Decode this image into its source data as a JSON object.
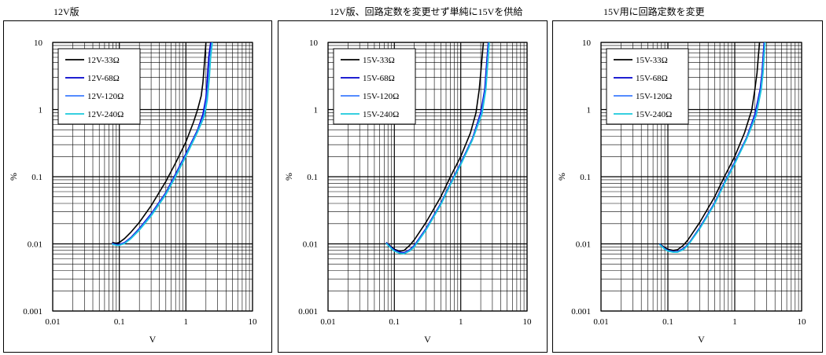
{
  "chart_data": [
    {
      "type": "line",
      "title": "12V版",
      "xlabel": "V",
      "ylabel": "%",
      "xscale": "log",
      "yscale": "log",
      "xlim": [
        0.01,
        10
      ],
      "ylim": [
        0.001,
        10
      ],
      "xticks": [
        "0.01",
        "0.1",
        "1",
        "10"
      ],
      "yticks": [
        "0.001",
        "0.01",
        "0.1",
        "1",
        "10"
      ],
      "grid": true,
      "legend": "top-left",
      "series": [
        {
          "name": "12V-33Ω",
          "color": "#000000",
          "x": [
            0.078,
            0.09,
            0.1,
            0.12,
            0.15,
            0.2,
            0.3,
            0.5,
            0.7,
            1.0,
            1.3,
            1.5,
            1.7,
            1.8,
            1.9,
            2.0
          ],
          "y": [
            0.0105,
            0.0102,
            0.0105,
            0.012,
            0.015,
            0.021,
            0.037,
            0.085,
            0.16,
            0.33,
            0.65,
            1.0,
            1.6,
            2.5,
            5.0,
            10.0
          ]
        },
        {
          "name": "12V-68Ω",
          "color": "#0000cc",
          "x": [
            0.078,
            0.09,
            0.1,
            0.12,
            0.15,
            0.2,
            0.3,
            0.5,
            0.7,
            1.0,
            1.5,
            1.8,
            2.0,
            2.1,
            2.2,
            2.35
          ],
          "y": [
            0.0102,
            0.0098,
            0.0098,
            0.0105,
            0.0125,
            0.017,
            0.028,
            0.058,
            0.11,
            0.22,
            0.5,
            0.85,
            1.5,
            3.0,
            6.0,
            10.0
          ]
        },
        {
          "name": "12V-120Ω",
          "color": "#3d7bff",
          "x": [
            0.078,
            0.09,
            0.1,
            0.12,
            0.15,
            0.2,
            0.3,
            0.5,
            0.7,
            1.0,
            1.5,
            1.85,
            2.05,
            2.2,
            2.3,
            2.45
          ],
          "y": [
            0.01,
            0.0096,
            0.0096,
            0.0103,
            0.0122,
            0.0165,
            0.027,
            0.056,
            0.105,
            0.21,
            0.48,
            0.82,
            1.45,
            3.0,
            6.0,
            10.0
          ]
        },
        {
          "name": "12V-240Ω",
          "color": "#19c8dc",
          "x": [
            0.078,
            0.09,
            0.1,
            0.12,
            0.15,
            0.2,
            0.3,
            0.5,
            0.7,
            1.0,
            1.5,
            1.9,
            2.1,
            2.25,
            2.35,
            2.5
          ],
          "y": [
            0.0099,
            0.0095,
            0.0095,
            0.0101,
            0.012,
            0.016,
            0.026,
            0.054,
            0.1,
            0.2,
            0.46,
            0.8,
            1.4,
            3.0,
            6.0,
            10.0
          ]
        }
      ]
    },
    {
      "type": "line",
      "title": "12V版、回路定数を変更せず単純に15Vを供給",
      "xlabel": "V",
      "ylabel": "%",
      "xscale": "log",
      "yscale": "log",
      "xlim": [
        0.01,
        10
      ],
      "ylim": [
        0.001,
        10
      ],
      "xticks": [
        "0.01",
        "0.1",
        "1",
        "10"
      ],
      "yticks": [
        "0.001",
        "0.01",
        "0.1",
        "1",
        "10"
      ],
      "grid": true,
      "legend": "top-left",
      "series": [
        {
          "name": "15V-33Ω",
          "color": "#000000",
          "x": [
            0.075,
            0.09,
            0.1,
            0.12,
            0.14,
            0.17,
            0.2,
            0.3,
            0.5,
            0.7,
            1.0,
            1.4,
            1.7,
            1.9,
            2.0,
            2.1,
            2.2
          ],
          "y": [
            0.0105,
            0.009,
            0.0083,
            0.0078,
            0.008,
            0.0095,
            0.0115,
            0.021,
            0.05,
            0.1,
            0.2,
            0.45,
            0.9,
            2.0,
            3.5,
            6.0,
            10.0
          ]
        },
        {
          "name": "15V-68Ω",
          "color": "#0000cc",
          "x": [
            0.075,
            0.09,
            0.1,
            0.12,
            0.14,
            0.17,
            0.2,
            0.3,
            0.5,
            0.7,
            1.0,
            1.5,
            2.0,
            2.3,
            2.4,
            2.5,
            2.6
          ],
          "y": [
            0.0105,
            0.0088,
            0.0081,
            0.0075,
            0.0074,
            0.0082,
            0.0095,
            0.017,
            0.04,
            0.08,
            0.16,
            0.37,
            0.9,
            2.0,
            3.5,
            6.0,
            10.0
          ]
        },
        {
          "name": "15V-120Ω",
          "color": "#3d7bff",
          "x": [
            0.075,
            0.09,
            0.1,
            0.12,
            0.14,
            0.17,
            0.2,
            0.3,
            0.5,
            0.7,
            1.0,
            1.5,
            2.05,
            2.35,
            2.45,
            2.55,
            2.65
          ],
          "y": [
            0.0103,
            0.0086,
            0.0079,
            0.0073,
            0.0072,
            0.008,
            0.0092,
            0.0165,
            0.039,
            0.078,
            0.155,
            0.36,
            0.88,
            2.0,
            3.5,
            6.0,
            10.0
          ]
        },
        {
          "name": "15V-240Ω",
          "color": "#19c8dc",
          "x": [
            0.075,
            0.09,
            0.1,
            0.12,
            0.14,
            0.17,
            0.2,
            0.3,
            0.5,
            0.7,
            1.0,
            1.5,
            2.1,
            2.4,
            2.5,
            2.6,
            2.7
          ],
          "y": [
            0.0102,
            0.0085,
            0.0078,
            0.0072,
            0.0071,
            0.0078,
            0.009,
            0.016,
            0.038,
            0.076,
            0.15,
            0.35,
            0.86,
            2.0,
            3.5,
            6.0,
            10.0
          ]
        }
      ]
    },
    {
      "type": "line",
      "title": "15V用に回路定数を変更",
      "xlabel": "V",
      "ylabel": "%",
      "xscale": "log",
      "yscale": "log",
      "xlim": [
        0.01,
        10
      ],
      "ylim": [
        0.001,
        10
      ],
      "xticks": [
        "0.01",
        "0.1",
        "1",
        "10"
      ],
      "yticks": [
        "0.001",
        "0.01",
        "0.1",
        "1",
        "10"
      ],
      "grid": true,
      "legend": "top-left",
      "series": [
        {
          "name": "15V-33Ω",
          "color": "#000000",
          "x": [
            0.075,
            0.09,
            0.1,
            0.12,
            0.14,
            0.17,
            0.2,
            0.3,
            0.5,
            0.7,
            1.0,
            1.4,
            1.8,
            2.0,
            2.15,
            2.25,
            2.35
          ],
          "y": [
            0.01,
            0.0088,
            0.0083,
            0.008,
            0.0082,
            0.0095,
            0.0115,
            0.021,
            0.05,
            0.1,
            0.2,
            0.45,
            1.0,
            2.0,
            3.5,
            6.0,
            10.0
          ]
        },
        {
          "name": "15V-68Ω",
          "color": "#0000cc",
          "x": [
            0.075,
            0.09,
            0.1,
            0.12,
            0.14,
            0.17,
            0.2,
            0.3,
            0.5,
            0.7,
            1.0,
            1.5,
            2.0,
            2.4,
            2.55,
            2.65,
            2.75
          ],
          "y": [
            0.01,
            0.0085,
            0.008,
            0.0077,
            0.0077,
            0.0085,
            0.0098,
            0.0175,
            0.041,
            0.082,
            0.165,
            0.38,
            0.85,
            2.0,
            3.5,
            6.0,
            10.0
          ]
        },
        {
          "name": "15V-120Ω",
          "color": "#3d7bff",
          "x": [
            0.075,
            0.09,
            0.1,
            0.12,
            0.14,
            0.17,
            0.2,
            0.3,
            0.5,
            0.7,
            1.0,
            1.5,
            2.05,
            2.45,
            2.6,
            2.7,
            2.8
          ],
          "y": [
            0.0099,
            0.0084,
            0.0079,
            0.0076,
            0.0076,
            0.0083,
            0.0096,
            0.017,
            0.04,
            0.08,
            0.16,
            0.37,
            0.83,
            2.0,
            3.5,
            6.0,
            10.0
          ]
        },
        {
          "name": "15V-240Ω",
          "color": "#19c8dc",
          "x": [
            0.075,
            0.09,
            0.1,
            0.12,
            0.14,
            0.17,
            0.2,
            0.3,
            0.5,
            0.7,
            1.0,
            1.5,
            2.1,
            2.5,
            2.65,
            2.75,
            2.85
          ],
          "y": [
            0.0098,
            0.0083,
            0.0078,
            0.0075,
            0.0075,
            0.0082,
            0.0095,
            0.0168,
            0.039,
            0.078,
            0.155,
            0.36,
            0.82,
            2.0,
            3.5,
            6.0,
            10.0
          ]
        }
      ]
    }
  ]
}
